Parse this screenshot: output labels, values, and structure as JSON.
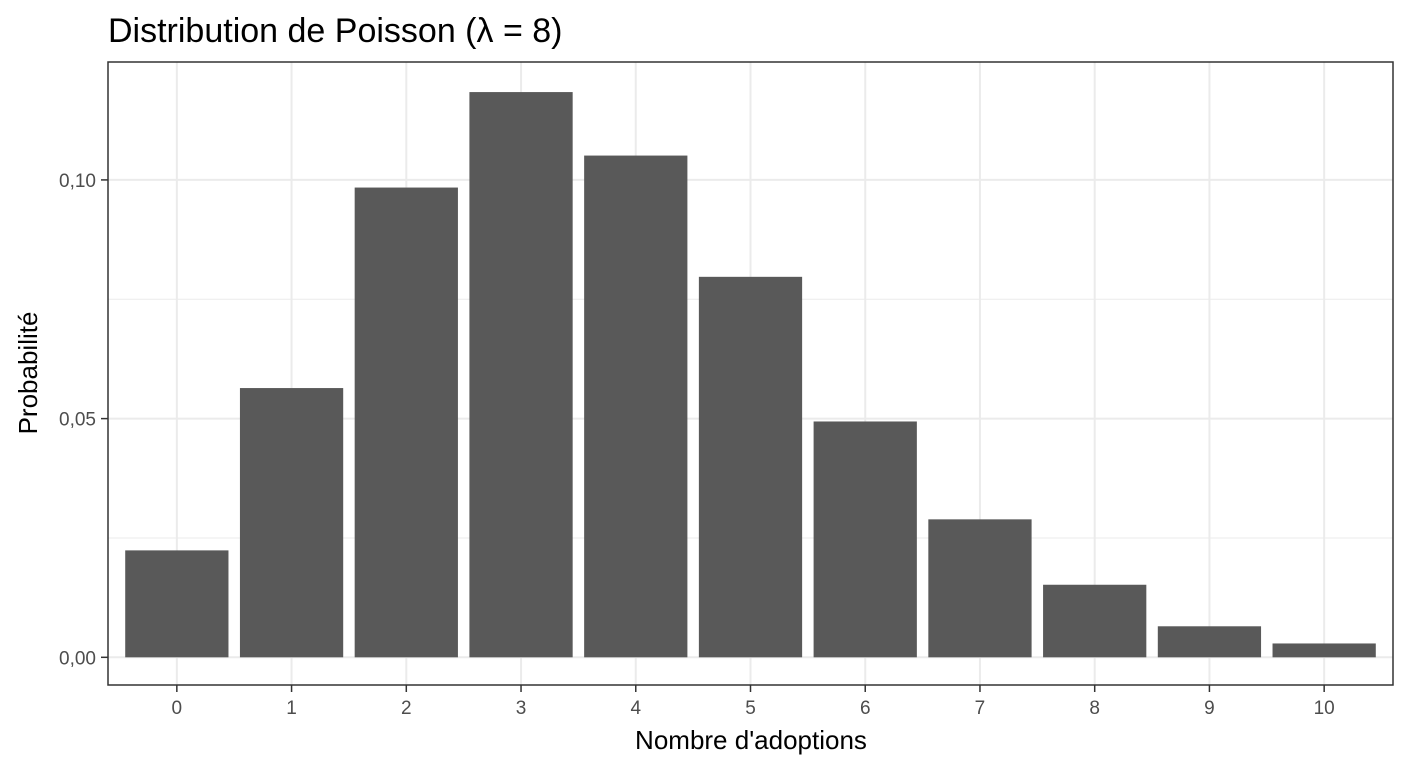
{
  "chart_data": {
    "type": "bar",
    "title": "Distribution de Poisson (λ = 8)",
    "xlabel": "Nombre d'adoptions",
    "ylabel": "Probabilité",
    "categories": [
      "0",
      "1",
      "2",
      "3",
      "4",
      "5",
      "6",
      "7",
      "8",
      "9",
      "10"
    ],
    "values": [
      0.0224,
      0.0564,
      0.0984,
      0.1184,
      0.1051,
      0.0797,
      0.0494,
      0.0289,
      0.0152,
      0.0065,
      0.0029
    ],
    "ylim": [
      -0.0058,
      0.1247
    ],
    "yticks": [
      0.0,
      0.05,
      0.1
    ],
    "ytick_labels": [
      "0,00",
      "0,05",
      "0,10"
    ],
    "grid": true,
    "legend": "none",
    "colors": {
      "bar": "#595959",
      "panel_border": "#333333",
      "grid": "#ebebeb",
      "tick_text": "#4d4d4d",
      "text": "#000000"
    }
  }
}
